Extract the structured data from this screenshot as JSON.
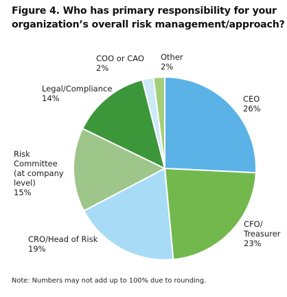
{
  "figure": {
    "title_lines": [
      "Figure 4. Who has primary responsibility for your",
      "organization’s overall risk management/approach?"
    ],
    "note": "Note: Numbers may not add up to 100% due to rounding."
  },
  "chart_data": {
    "type": "pie",
    "title": "Figure 4. Who has primary responsibility for your organization’s overall risk management/approach?",
    "unit": "%",
    "start_angle_deg": 0,
    "direction": "clockwise",
    "slices": [
      {
        "label": "CEO",
        "value": 26,
        "value_text": "26%",
        "color": "#5ab2e6",
        "label_lines": [
          "CEO",
          "26%"
        ],
        "anchor": "start"
      },
      {
        "label": "CFO/Treasurer",
        "value": 23,
        "value_text": "23%",
        "color": "#72b84d",
        "label_lines": [
          "CFO/",
          "Treasurer",
          "23%"
        ],
        "anchor": "start"
      },
      {
        "label": "CRO/Head of Risk",
        "value": 19,
        "value_text": "19%",
        "color": "#a8dcf6",
        "label_lines": [
          "CRO/Head of Risk",
          "19%"
        ],
        "anchor": "start"
      },
      {
        "label": "Risk Committee (at company level)",
        "value": 15,
        "value_text": "15%",
        "color": "#9ec58a",
        "label_lines": [
          "Risk",
          "Committee",
          "(at company",
          "level)",
          "15%"
        ],
        "anchor": "start"
      },
      {
        "label": "Legal/Compliance",
        "value": 14,
        "value_text": "14%",
        "color": "#3c963a",
        "label_lines": [
          "Legal/Compliance",
          "14%"
        ],
        "anchor": "start"
      },
      {
        "label": "COO or CAO",
        "value": 2,
        "value_text": "2%",
        "color": "#cce9f6",
        "label_lines": [
          "COO or CAO",
          "2%"
        ],
        "anchor": "start"
      },
      {
        "label": "Other",
        "value": 2,
        "value_text": "2%",
        "color": "#a2d07a",
        "label_lines": [
          "Other",
          "2%"
        ],
        "anchor": "start"
      }
    ]
  }
}
